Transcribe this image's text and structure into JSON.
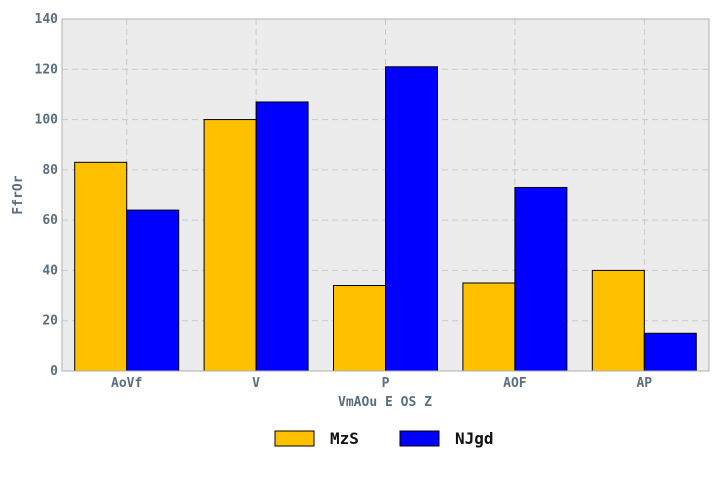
{
  "chart_data": {
    "type": "bar",
    "title": "",
    "xlabel": "VmAOu E OS Z",
    "ylabel": "FfrOr",
    "categories": [
      "AoVf",
      "V",
      "P",
      "AOF",
      "AP"
    ],
    "series": [
      {
        "name": "MzS",
        "color": "#ffc000",
        "values": [
          83,
          100,
          34,
          35,
          40
        ]
      },
      {
        "name": "NJgd",
        "color": "#0000ff",
        "values": [
          64,
          107,
          121,
          73,
          15
        ]
      }
    ],
    "ylim": [
      0,
      140
    ],
    "yticks": [
      0,
      20,
      40,
      60,
      80,
      100,
      120,
      140
    ],
    "grid": true,
    "legend_position": "bottom-center"
  }
}
